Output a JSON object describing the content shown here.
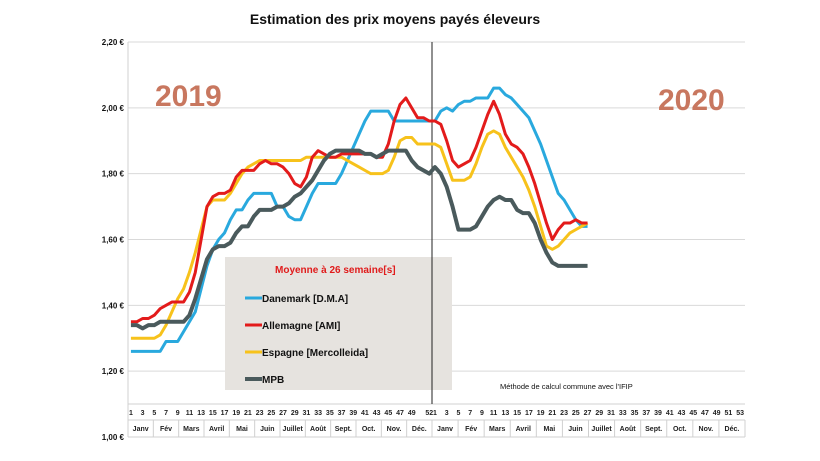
{
  "chart_data": {
    "type": "line",
    "title": "Estimation des prix moyens payés éleveurs",
    "year_labels": [
      "2019",
      "2020"
    ],
    "ylim": [
      1.0,
      2.2
    ],
    "yticks": [
      "1,00 €",
      "1,20 €",
      "1,40 €",
      "1,60 €",
      "1,80 €",
      "2,00 €",
      "2,20 €"
    ],
    "ytick_values": [
      1.0,
      1.2,
      1.4,
      1.6,
      1.8,
      2.0,
      2.2
    ],
    "grid": true,
    "x_ticks_2019": [
      "1",
      "3",
      "5",
      "7",
      "9",
      "11",
      "13",
      "15",
      "17",
      "19",
      "21",
      "23",
      "25",
      "27",
      "29",
      "31",
      "33",
      "35",
      "37",
      "39",
      "41",
      "43",
      "45",
      "47",
      "49",
      "52"
    ],
    "x_ticks_2020": [
      "1",
      "3",
      "5",
      "7",
      "9",
      "11",
      "13",
      "15",
      "17",
      "19",
      "21",
      "23",
      "25",
      "27",
      "29",
      "31",
      "33",
      "35",
      "37",
      "39",
      "41",
      "43",
      "45",
      "47",
      "49",
      "51",
      "53"
    ],
    "months": [
      "Janv",
      "Fév",
      "Mars",
      "Avril",
      "Mai",
      "Juin",
      "Juillet",
      "Août",
      "Sept.",
      "Oct.",
      "Nov.",
      "Déc."
    ],
    "legend_title": "Moyenne à  26 semaine[s]",
    "legend_position": "bottom-left (inside)",
    "annotation": "Méthode de calcul commune avec l'IFIP",
    "x_unit": "weeks 2019 (1–52) then 2020 (1–27)",
    "series": [
      {
        "name": "Danemark [D.M.A]",
        "color": "#29a9de",
        "y2019": [
          1.26,
          1.26,
          1.26,
          1.26,
          1.26,
          1.26,
          1.29,
          1.29,
          1.29,
          1.32,
          1.35,
          1.38,
          1.45,
          1.52,
          1.57,
          1.6,
          1.62,
          1.66,
          1.69,
          1.69,
          1.72,
          1.74,
          1.74,
          1.74,
          1.74,
          1.7,
          1.7,
          1.67,
          1.66,
          1.66,
          1.7,
          1.74,
          1.77,
          1.77,
          1.77,
          1.77,
          1.8,
          1.84,
          1.88,
          1.92,
          1.96,
          1.99,
          1.99,
          1.99,
          1.99,
          1.96,
          1.96,
          1.96,
          1.96,
          1.96,
          1.96,
          1.96
        ],
        "y2020": [
          1.96,
          1.99,
          2.0,
          1.99,
          2.01,
          2.02,
          2.02,
          2.03,
          2.03,
          2.03,
          2.06,
          2.06,
          2.04,
          2.03,
          2.01,
          1.99,
          1.97,
          1.93,
          1.89,
          1.84,
          1.79,
          1.74,
          1.72,
          1.69,
          1.66,
          1.64,
          1.64
        ]
      },
      {
        "name": "Allemagne [AMI]",
        "color": "#e31b1b",
        "y2019": [
          1.35,
          1.35,
          1.36,
          1.36,
          1.37,
          1.39,
          1.4,
          1.41,
          1.41,
          1.41,
          1.44,
          1.5,
          1.6,
          1.7,
          1.73,
          1.74,
          1.74,
          1.75,
          1.79,
          1.81,
          1.81,
          1.81,
          1.83,
          1.84,
          1.83,
          1.83,
          1.82,
          1.8,
          1.77,
          1.76,
          1.79,
          1.85,
          1.87,
          1.86,
          1.85,
          1.85,
          1.86,
          1.86,
          1.86,
          1.86,
          1.86,
          1.86,
          1.85,
          1.85,
          1.89,
          1.96,
          2.01,
          2.03,
          2.0,
          1.97,
          1.97,
          1.96
        ],
        "y2020": [
          1.96,
          1.95,
          1.9,
          1.84,
          1.82,
          1.83,
          1.84,
          1.88,
          1.93,
          1.98,
          2.02,
          1.98,
          1.92,
          1.89,
          1.88,
          1.86,
          1.82,
          1.77,
          1.71,
          1.65,
          1.6,
          1.63,
          1.65,
          1.65,
          1.66,
          1.65,
          1.65
        ]
      },
      {
        "name": "Espagne [Mercolleida]",
        "color": "#f7c21b",
        "y2019": [
          1.3,
          1.3,
          1.3,
          1.3,
          1.3,
          1.31,
          1.34,
          1.38,
          1.42,
          1.45,
          1.5,
          1.56,
          1.63,
          1.7,
          1.72,
          1.72,
          1.72,
          1.74,
          1.77,
          1.8,
          1.82,
          1.83,
          1.84,
          1.84,
          1.84,
          1.84,
          1.84,
          1.84,
          1.84,
          1.84,
          1.85,
          1.85,
          1.85,
          1.85,
          1.85,
          1.85,
          1.85,
          1.84,
          1.83,
          1.82,
          1.81,
          1.8,
          1.8,
          1.8,
          1.81,
          1.85,
          1.9,
          1.91,
          1.91,
          1.89,
          1.89,
          1.89
        ],
        "y2020": [
          1.89,
          1.88,
          1.83,
          1.78,
          1.78,
          1.78,
          1.79,
          1.83,
          1.88,
          1.92,
          1.93,
          1.92,
          1.88,
          1.85,
          1.82,
          1.79,
          1.75,
          1.7,
          1.64,
          1.58,
          1.57,
          1.58,
          1.6,
          1.62,
          1.63,
          1.64,
          1.65
        ]
      },
      {
        "name": "MPB",
        "color": "#4a5a5c",
        "y2019": [
          1.34,
          1.34,
          1.33,
          1.34,
          1.34,
          1.35,
          1.35,
          1.35,
          1.35,
          1.35,
          1.37,
          1.42,
          1.48,
          1.54,
          1.57,
          1.58,
          1.58,
          1.59,
          1.62,
          1.64,
          1.64,
          1.67,
          1.69,
          1.69,
          1.69,
          1.7,
          1.7,
          1.71,
          1.73,
          1.74,
          1.76,
          1.78,
          1.81,
          1.84,
          1.86,
          1.87,
          1.87,
          1.87,
          1.87,
          1.87,
          1.86,
          1.86,
          1.85,
          1.86,
          1.87,
          1.87,
          1.87,
          1.87,
          1.84,
          1.82,
          1.81,
          1.8
        ],
        "y2020": [
          1.82,
          1.8,
          1.76,
          1.7,
          1.63,
          1.63,
          1.63,
          1.64,
          1.67,
          1.7,
          1.72,
          1.73,
          1.72,
          1.72,
          1.69,
          1.68,
          1.68,
          1.65,
          1.6,
          1.56,
          1.53,
          1.52,
          1.52,
          1.52,
          1.52,
          1.52,
          1.52
        ]
      }
    ]
  }
}
